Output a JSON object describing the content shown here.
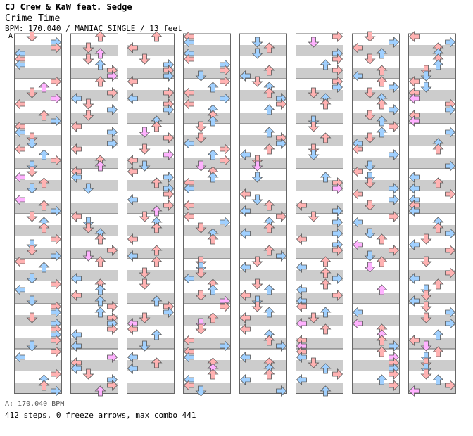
{
  "header": {
    "artist": "CJ Crew & KaW feat. Sedge",
    "title": "Crime Time",
    "info": "BPM: 170.040 / MANIAC SINGLE / 13 feet"
  },
  "section_marker": "A",
  "footer": {
    "bpm_line": "A: 170.040 BPM",
    "stats_line": "412 steps, 0 freeze arrows, max combo 441"
  },
  "colors": {
    "stripe": "#cccccc",
    "border": "#666666",
    "quarter_arrow": "#ffb2b2",
    "eighth_arrow": "#a0d0ff",
    "sixteenth_arrow": "#ffb2ff"
  },
  "chart_data": {
    "type": "step-chart",
    "columns": 8,
    "measures_per_column": 8,
    "lanes": [
      "left",
      "down",
      "up",
      "right"
    ],
    "steps": 412,
    "freeze_arrows": 0,
    "max_combo": 441,
    "seed": 7
  }
}
